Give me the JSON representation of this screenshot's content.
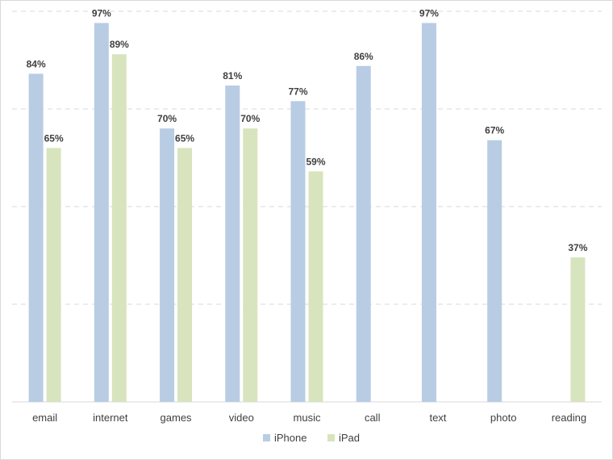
{
  "chart_data": {
    "type": "bar",
    "title": "",
    "xlabel": "",
    "ylabel": "",
    "ylim": [
      0,
      100
    ],
    "grid": true,
    "legend_position": "bottom",
    "categories": [
      "email",
      "internet",
      "games",
      "video",
      "music",
      "call",
      "text",
      "photo",
      "reading"
    ],
    "series": [
      {
        "name": "iPhone",
        "color": "#b8cce4",
        "values": [
          84,
          97,
          70,
          81,
          77,
          86,
          97,
          67,
          null
        ],
        "labels": [
          "84%",
          "97%",
          "70%",
          "81%",
          "77%",
          "86%",
          "97%",
          "67%",
          ""
        ]
      },
      {
        "name": "iPad",
        "color": "#d7e4bd",
        "values": [
          65,
          89,
          65,
          70,
          59,
          null,
          null,
          null,
          37
        ],
        "labels": [
          "65%",
          "89%",
          "65%",
          "70%",
          "59%",
          "",
          "",
          "",
          "37%"
        ]
      }
    ]
  }
}
